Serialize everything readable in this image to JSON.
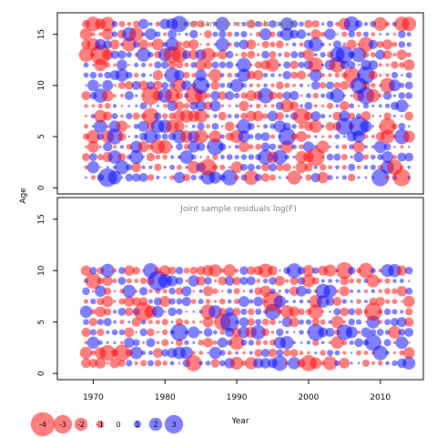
{
  "chart_data": [
    {
      "type": "scatter",
      "subtype": "bubble",
      "title": "Joint sample residuals log(N)",
      "xlabel": "Year",
      "ylabel": "Age",
      "xlim": [
        1965,
        2016
      ],
      "ylim": [
        -0.6,
        17.1
      ],
      "xticks": [
        1970,
        1980,
        1990,
        2000,
        2010
      ],
      "yticks": [
        0,
        5,
        10,
        15
      ],
      "years": [
        1969,
        2014
      ],
      "ages": [
        1,
        16
      ],
      "seed": 17,
      "grid": false,
      "positive_color": "#0000ff",
      "negative_color": "#ff0000",
      "marker_opacity": 0.5
    },
    {
      "type": "scatter",
      "subtype": "bubble",
      "title": "Joint sample residuals log(F)",
      "xlabel": "Year",
      "ylabel": "Age",
      "xlim": [
        1965,
        2016
      ],
      "ylim": [
        -0.6,
        17.1
      ],
      "xticks": [
        1970,
        1980,
        1990,
        2000,
        2010
      ],
      "yticks": [
        0,
        5,
        10,
        15
      ],
      "years": [
        1969,
        2014
      ],
      "ages": [
        1,
        10
      ],
      "seed": 91,
      "grid": false,
      "positive_color": "#0000ff",
      "negative_color": "#ff0000",
      "marker_opacity": 0.5
    }
  ],
  "shared_labels": {
    "ylabel": "Age",
    "xlabel": "Year"
  },
  "legend": {
    "placement": "bottom-left",
    "entries": [
      "-4",
      "-3",
      "-2",
      "-1",
      "0",
      "1",
      "2",
      "3"
    ],
    "values": [
      -4,
      -3,
      -2,
      -1,
      0,
      1,
      2,
      3
    ]
  },
  "colors": {
    "positive": "#0000ff",
    "negative": "#ff0000",
    "title_text": "#7f7f7f",
    "axis": "#000000"
  }
}
